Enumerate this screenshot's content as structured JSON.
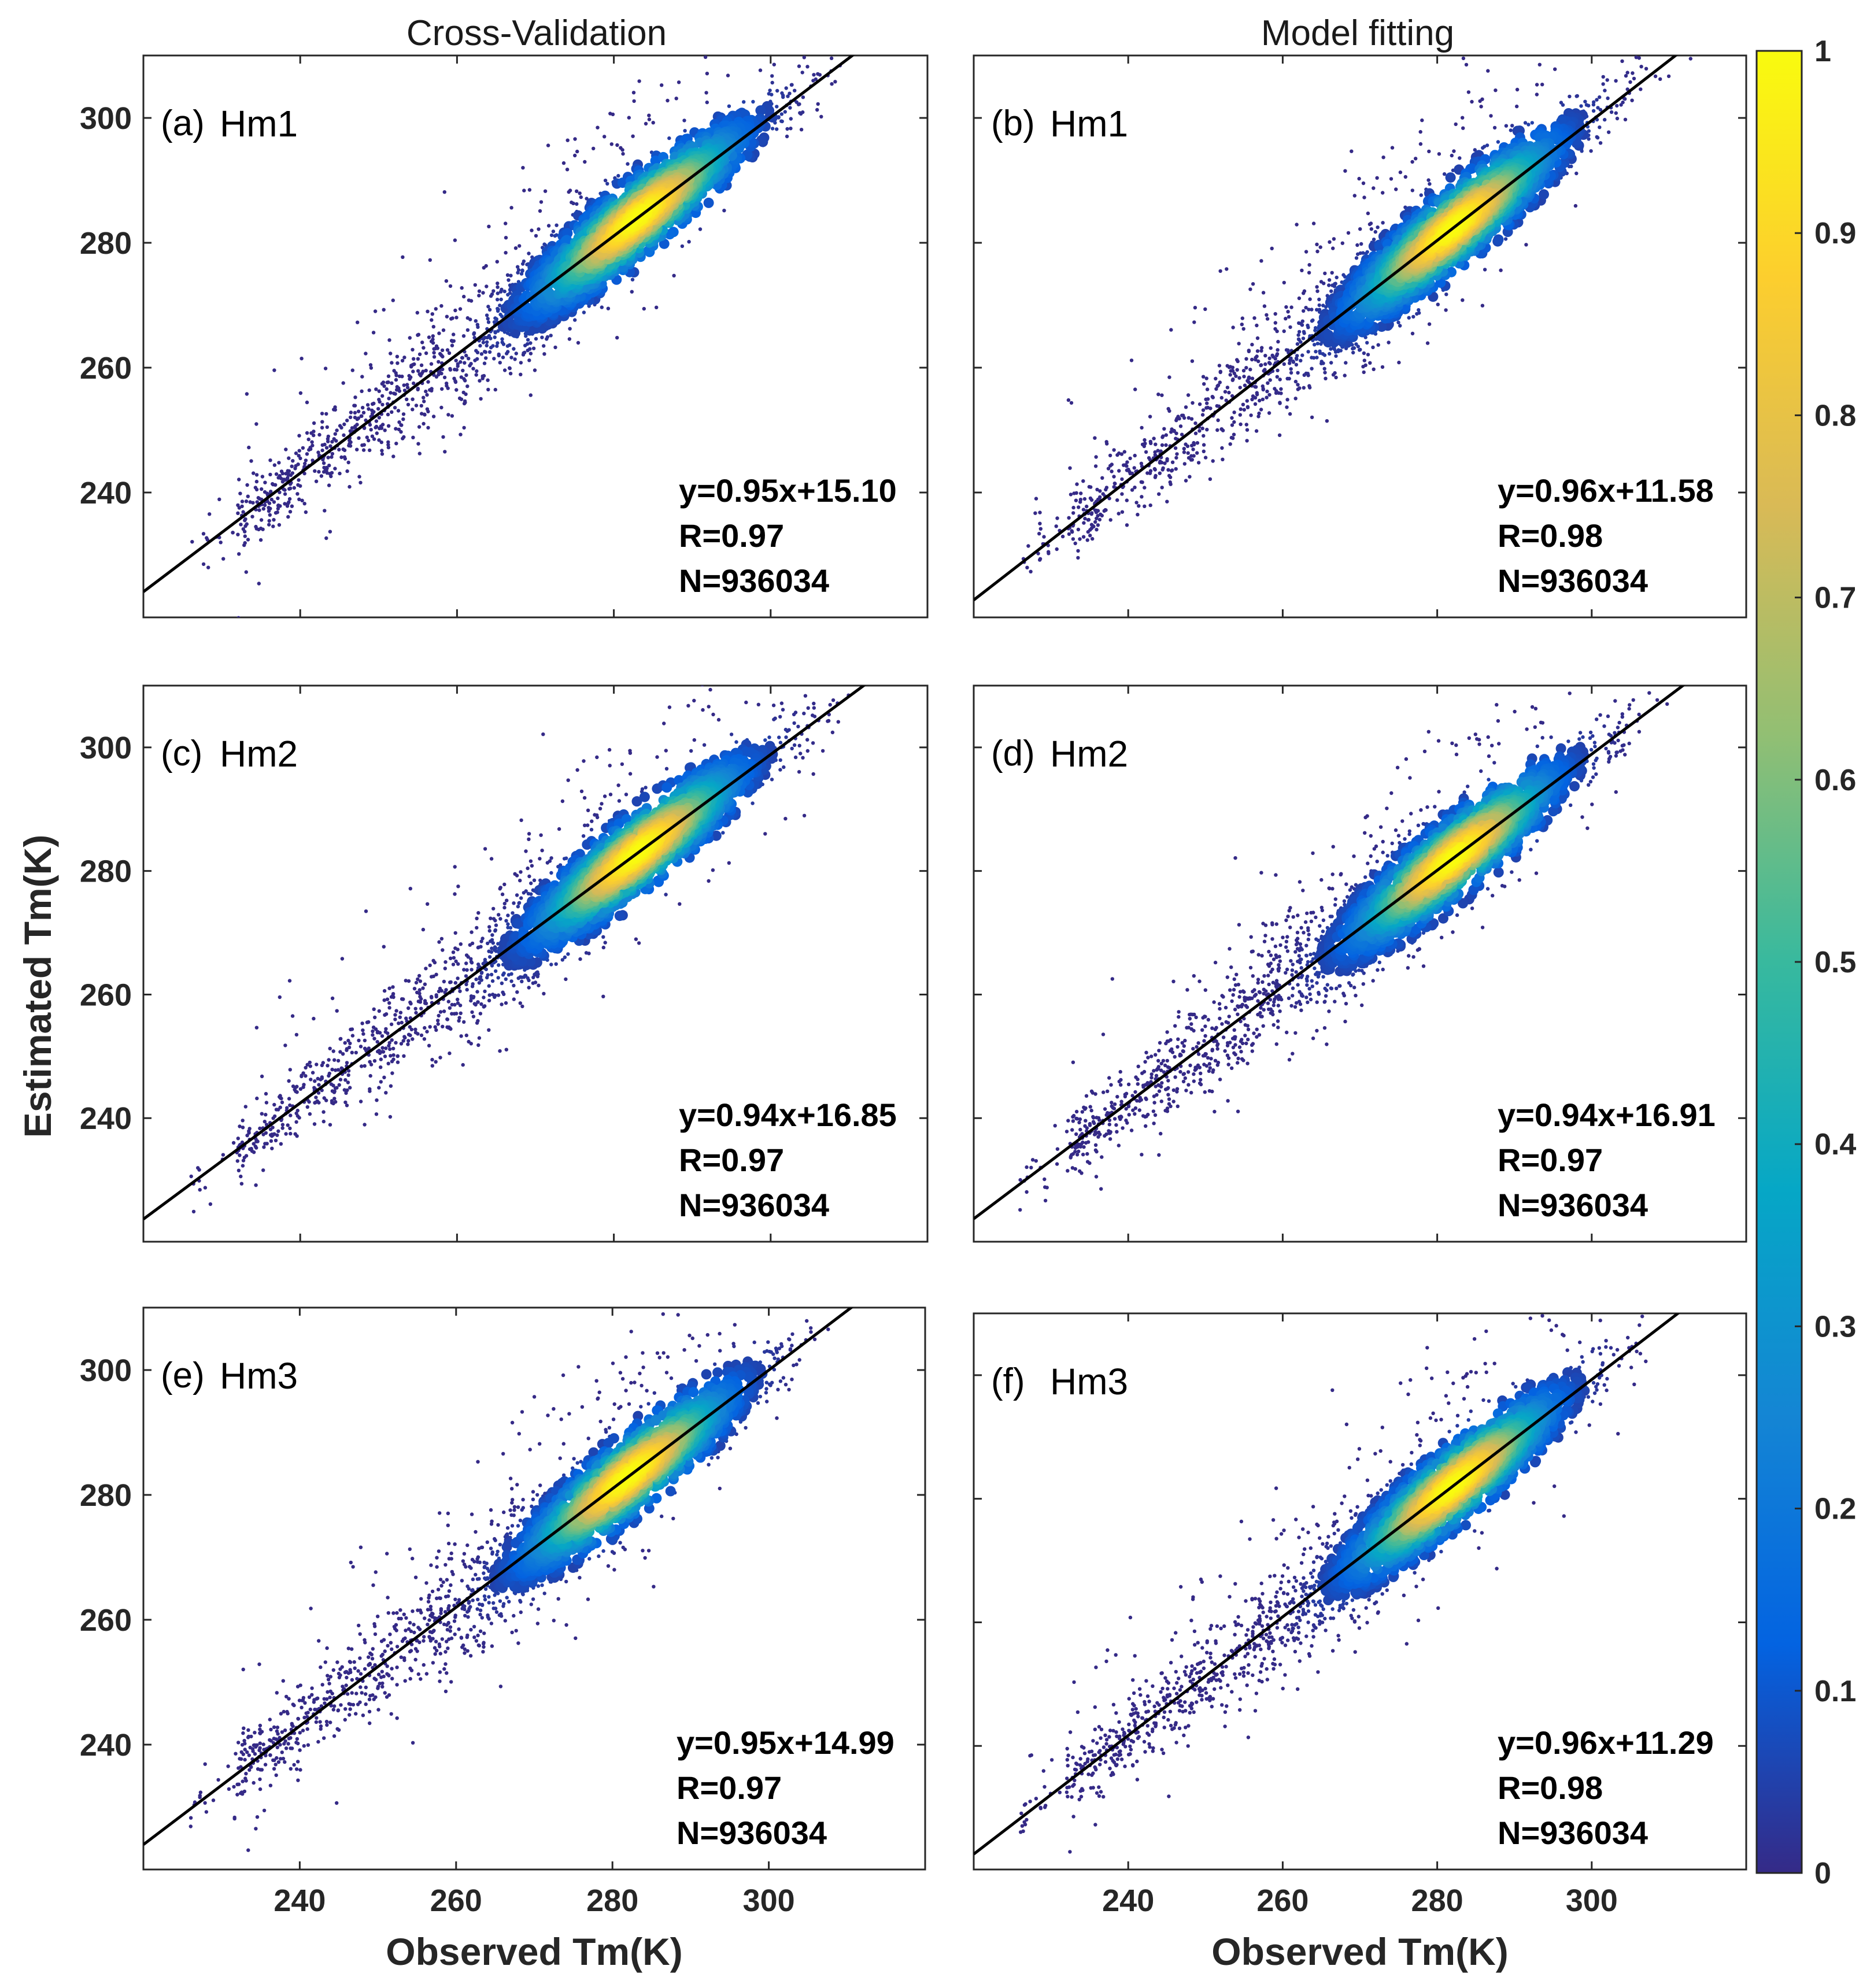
{
  "figure": {
    "column_titles": [
      "Cross-Validation",
      "Model fitting"
    ],
    "xlabel": "Observed Tm(K)",
    "ylabel": "Estimated Tm(K)"
  },
  "colorbar": {
    "colormap": "parula",
    "ticks": [
      "0",
      "0.1",
      "0.2",
      "0.3",
      "0.4",
      "0.5",
      "0.6",
      "0.7",
      "0.8",
      "0.9",
      "1"
    ],
    "colors": [
      "#352a87",
      "#0363e1",
      "#1485d4",
      "#06a7c6",
      "#38b99e",
      "#92bf73",
      "#d9ba56",
      "#fcce2e",
      "#f9fb0e"
    ]
  },
  "chart_data": [
    {
      "type": "scatter",
      "subtype": "density-scatter",
      "panel_tag": "(a)",
      "title": "Hm1",
      "column": "Cross-Validation",
      "xlabel": "",
      "ylabel": "",
      "xlim": [
        220,
        320
      ],
      "ylim": [
        220,
        310
      ],
      "xticks": [
        240,
        260,
        280,
        300
      ],
      "yticks": [
        240,
        260,
        280,
        300
      ],
      "xticklabels": [
        "",
        "",
        "",
        ""
      ],
      "yticklabels": [
        "240",
        "260",
        "280",
        "300"
      ],
      "fit": {
        "slope": 0.95,
        "intercept": 15.1
      },
      "stats": [
        "y=0.95x+15.10",
        "R=0.97",
        "N=936034"
      ],
      "density_peak": [
        283,
        283
      ]
    },
    {
      "type": "scatter",
      "subtype": "density-scatter",
      "panel_tag": "(b)",
      "title": "Hm1",
      "column": "Model fitting",
      "xlabel": "",
      "ylabel": "",
      "xlim": [
        220,
        320
      ],
      "ylim": [
        220,
        310
      ],
      "xticks": [
        240,
        260,
        280,
        300
      ],
      "yticks": [
        240,
        260,
        280,
        300
      ],
      "xticklabels": [
        "",
        "",
        "",
        ""
      ],
      "yticklabels": [
        "",
        "",
        "",
        ""
      ],
      "fit": {
        "slope": 0.96,
        "intercept": 11.58
      },
      "stats": [
        "y=0.96x+11.58",
        "R=0.98",
        "N=936034"
      ],
      "density_peak": [
        282,
        282
      ]
    },
    {
      "type": "scatter",
      "subtype": "density-scatter",
      "panel_tag": "(c)",
      "title": "Hm2",
      "column": "Cross-Validation",
      "xlabel": "",
      "ylabel": "Estimated Tm(K)",
      "xlim": [
        220,
        320
      ],
      "ylim": [
        220,
        310
      ],
      "xticks": [
        240,
        260,
        280,
        300
      ],
      "yticks": [
        240,
        260,
        280,
        300
      ],
      "xticklabels": [
        "",
        "",
        "",
        ""
      ],
      "yticklabels": [
        "240",
        "260",
        "280",
        "300"
      ],
      "fit": {
        "slope": 0.94,
        "intercept": 16.85
      },
      "stats": [
        "y=0.94x+16.85",
        "R=0.97",
        "N=936034"
      ],
      "density_peak": [
        283,
        283
      ]
    },
    {
      "type": "scatter",
      "subtype": "density-scatter",
      "panel_tag": "(d)",
      "title": "Hm2",
      "column": "Model fitting",
      "xlabel": "",
      "ylabel": "",
      "xlim": [
        220,
        320
      ],
      "ylim": [
        220,
        310
      ],
      "xticks": [
        240,
        260,
        280,
        300
      ],
      "yticks": [
        240,
        260,
        280,
        300
      ],
      "xticklabels": [
        "",
        "",
        "",
        ""
      ],
      "yticklabels": [
        "",
        "",
        "",
        ""
      ],
      "fit": {
        "slope": 0.94,
        "intercept": 16.91
      },
      "stats": [
        "y=0.94x+16.91",
        "R=0.97",
        "N=936034"
      ],
      "density_peak": [
        282,
        282
      ]
    },
    {
      "type": "scatter",
      "subtype": "density-scatter",
      "panel_tag": "(e)",
      "title": "Hm3",
      "column": "Cross-Validation",
      "xlabel": "Observed Tm(K)",
      "ylabel": "",
      "xlim": [
        220,
        320
      ],
      "ylim": [
        220,
        310
      ],
      "xticks": [
        240,
        260,
        280,
        300
      ],
      "yticks": [
        240,
        260,
        280,
        300
      ],
      "xticklabels": [
        "240",
        "260",
        "280",
        "300"
      ],
      "yticklabels": [
        "240",
        "260",
        "280",
        "300"
      ],
      "fit": {
        "slope": 0.95,
        "intercept": 14.99
      },
      "stats": [
        "y=0.95x+14.99",
        "R=0.97",
        "N=936034"
      ],
      "density_peak": [
        282,
        282
      ]
    },
    {
      "type": "scatter",
      "subtype": "density-scatter",
      "panel_tag": "(f)",
      "title": "Hm3",
      "column": "Model fitting",
      "xlabel": "Observed Tm(K)",
      "ylabel": "",
      "xlim": [
        220,
        320
      ],
      "ylim": [
        220,
        310
      ],
      "xticks": [
        240,
        260,
        280,
        300
      ],
      "yticks": [
        240,
        260,
        280,
        300
      ],
      "xticklabels": [
        "240",
        "260",
        "280",
        "300"
      ],
      "yticklabels": [
        "",
        "",
        "",
        ""
      ],
      "fit": {
        "slope": 0.96,
        "intercept": 11.29
      },
      "stats": [
        "y=0.96x+11.29",
        "R=0.98",
        "N=936034"
      ],
      "density_peak": [
        282,
        282
      ]
    }
  ]
}
